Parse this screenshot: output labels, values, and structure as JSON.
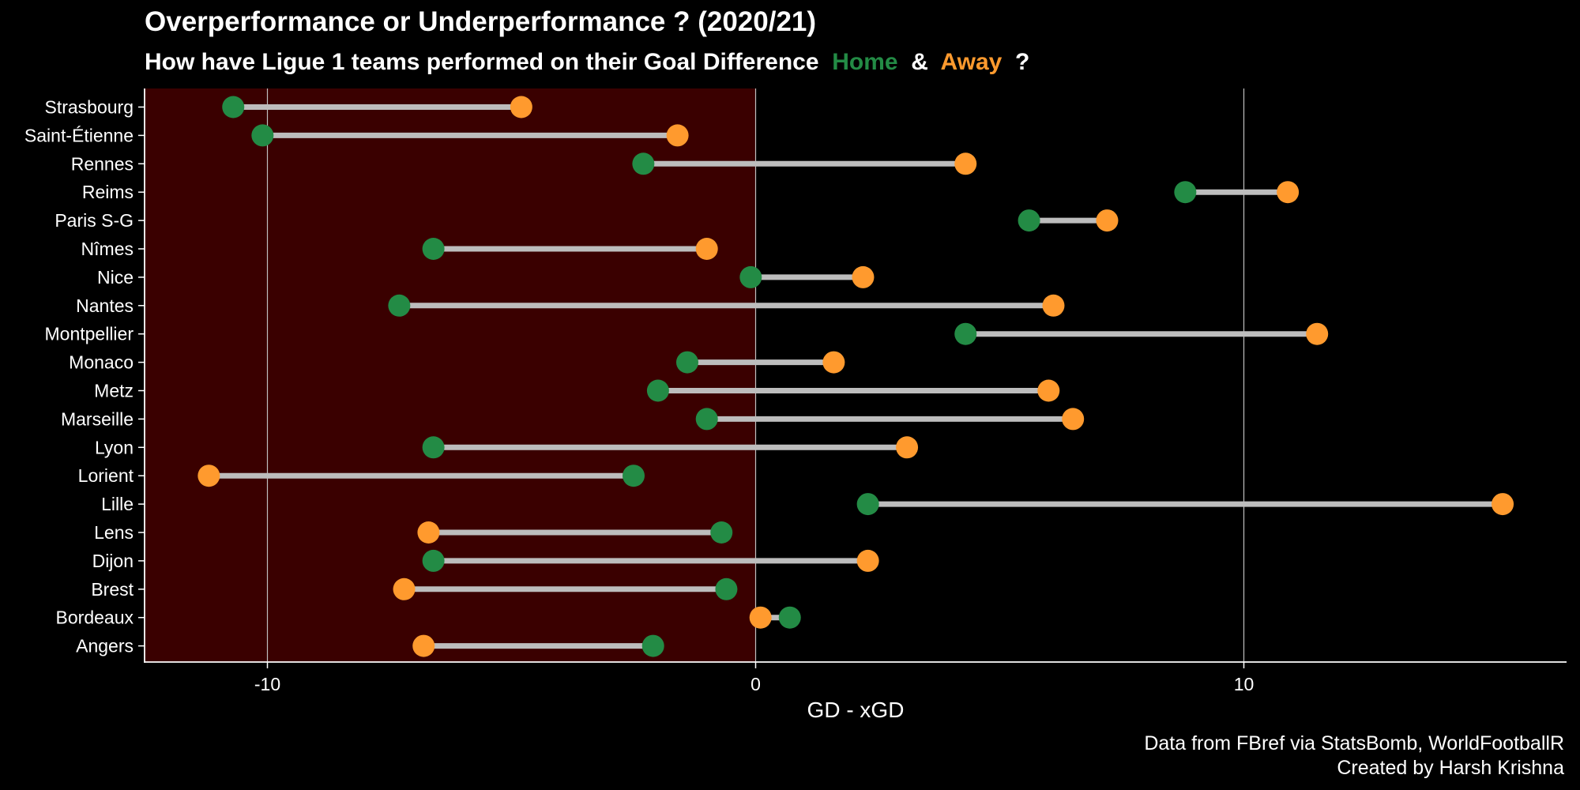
{
  "title": "Overperformance or Underperformance ? (2020/21)",
  "subtitle": {
    "prefix": "How have Ligue 1 teams performed on their Goal Difference",
    "home_label": "Home",
    "amp": "&",
    "away_label": "Away",
    "suffix": "?"
  },
  "caption": {
    "line1": "Data from FBref via StatsBomb, WorldFootballR",
    "line2": "Created by Harsh Krishna"
  },
  "colors": {
    "home": "#238B45",
    "away": "#FF9A2E",
    "segment": "#BDBDBD",
    "negative_region": "#3A0000",
    "background": "#000000",
    "gridline": "#BFBFBF"
  },
  "chart_data": {
    "type": "dumbbell",
    "xlabel": "GD - xGD",
    "ylabel": "",
    "xlim": [
      -12.5,
      16.6
    ],
    "x_ticks": [
      -10,
      0,
      10
    ],
    "x_tick_labels": [
      "-10",
      "0",
      "10"
    ],
    "negative_region_shaded": true,
    "grid": "vertical major gridlines",
    "series": [
      {
        "name": "Home"
      },
      {
        "name": "Away"
      }
    ],
    "teams": [
      {
        "team": "Strasbourg",
        "home": -10.7,
        "away": -4.8
      },
      {
        "team": "Saint-Étienne",
        "home": -10.1,
        "away": -1.6
      },
      {
        "team": "Rennes",
        "home": -2.3,
        "away": 4.3
      },
      {
        "team": "Reims",
        "home": 8.8,
        "away": 10.9
      },
      {
        "team": "Paris S-G",
        "home": 5.6,
        "away": 7.2
      },
      {
        "team": "Nîmes",
        "home": -6.6,
        "away": -1.0
      },
      {
        "team": "Nice",
        "home": -0.1,
        "away": 2.2
      },
      {
        "team": "Nantes",
        "home": -7.3,
        "away": 6.1
      },
      {
        "team": "Montpellier",
        "home": 4.3,
        "away": 11.5
      },
      {
        "team": "Monaco",
        "home": -1.4,
        "away": 1.6
      },
      {
        "team": "Metz",
        "home": -2.0,
        "away": 6.0
      },
      {
        "team": "Marseille",
        "home": -1.0,
        "away": 6.5
      },
      {
        "team": "Lyon",
        "home": -6.6,
        "away": 3.1
      },
      {
        "team": "Lorient",
        "home": -2.5,
        "away": -11.2
      },
      {
        "team": "Lille",
        "home": 2.3,
        "away": 15.3
      },
      {
        "team": "Lens",
        "home": -0.7,
        "away": -6.7
      },
      {
        "team": "Dijon",
        "home": -6.6,
        "away": 2.3
      },
      {
        "team": "Brest",
        "home": -0.6,
        "away": -7.2
      },
      {
        "team": "Bordeaux",
        "home": 0.7,
        "away": 0.1
      },
      {
        "team": "Angers",
        "home": -2.1,
        "away": -6.8
      }
    ]
  }
}
